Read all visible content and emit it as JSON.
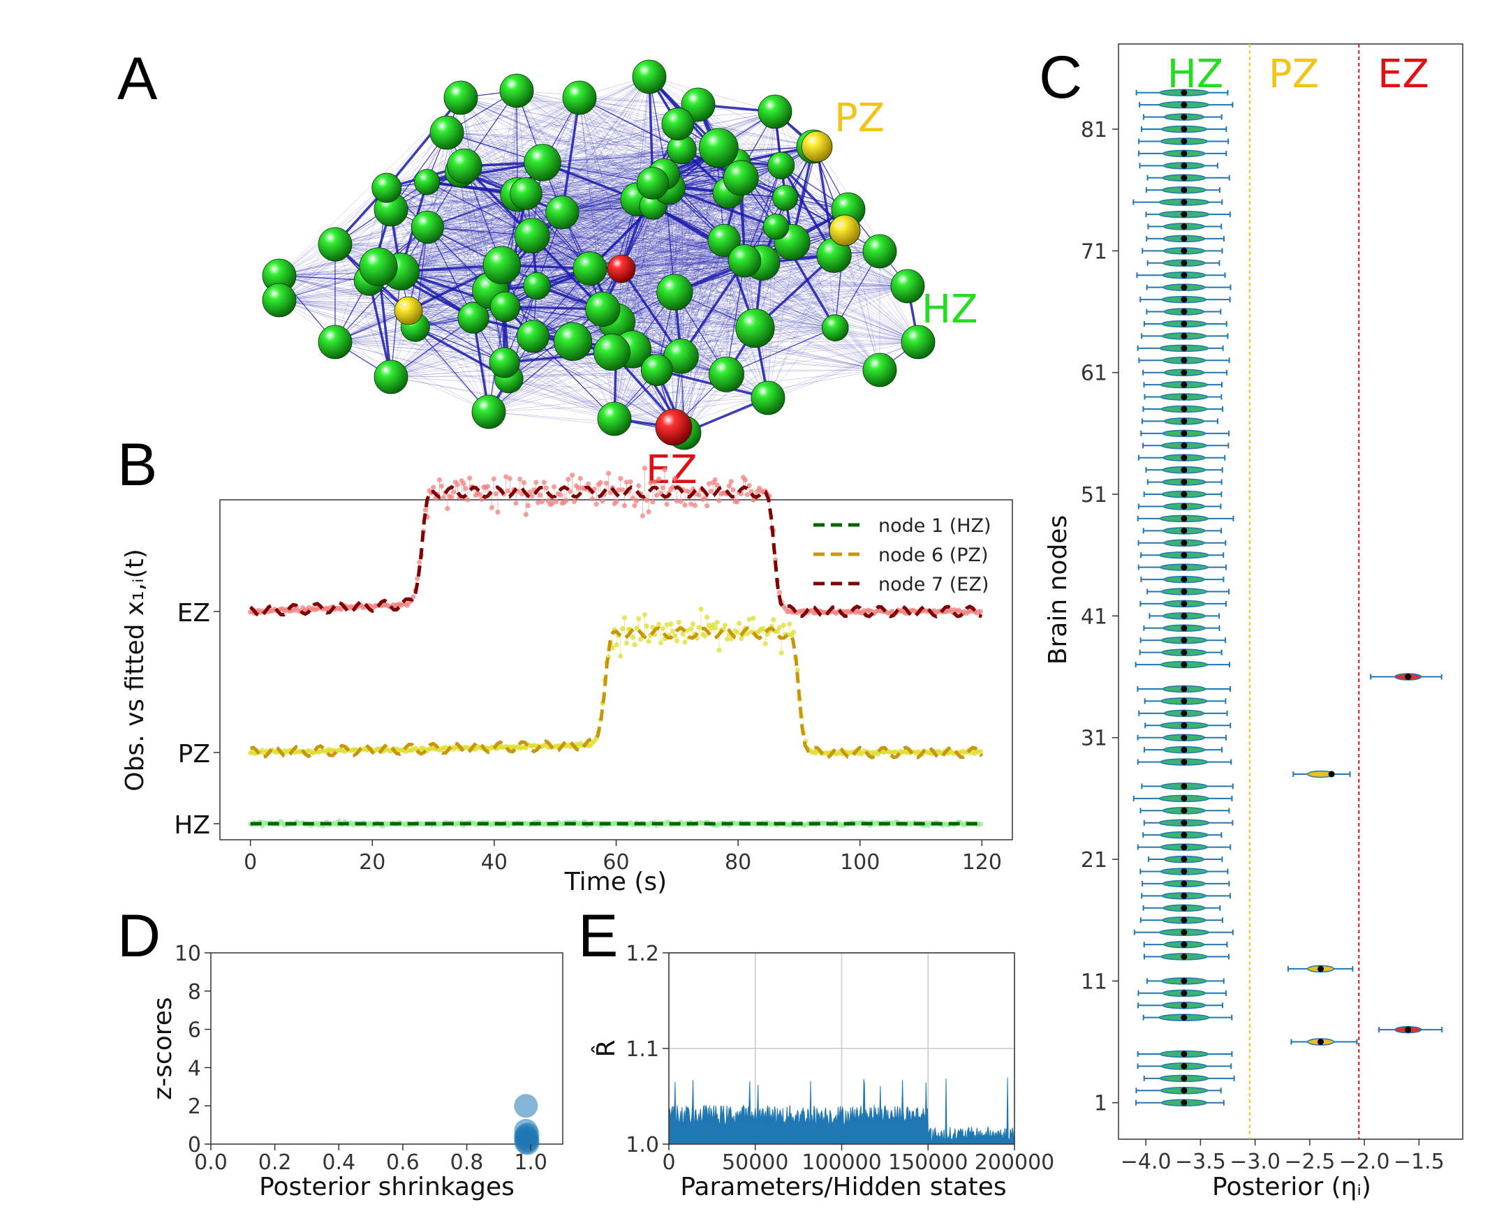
{
  "colors": {
    "hz": "#22dd22",
    "pz": "#f0c419",
    "ez": "#dd1111",
    "edge": "#1a1aaa",
    "violin_blue": "#1f77b4",
    "violin_green": "#3cb371"
  },
  "panel_labels": {
    "a": "A",
    "b": "B",
    "c": "C",
    "d": "D",
    "e": "E"
  },
  "network": {
    "label_pz": "PZ",
    "label_hz": "HZ",
    "label_ez": "EZ"
  },
  "chart_data": [
    {
      "id": "B",
      "type": "line",
      "xlabel": "Time (s)",
      "ylabel": "Obs. vs fitted x₁,ᵢ(t)",
      "xlim": [
        -5,
        125
      ],
      "xticks": [
        0,
        20,
        40,
        60,
        80,
        100,
        120
      ],
      "ytick_labels": [
        "EZ",
        "PZ",
        "HZ"
      ],
      "legend_position": "top-right",
      "series": [
        {
          "name": "node 1 (HZ)",
          "color": "#006400",
          "obs_color": "#90ee90",
          "baseline": 0.0,
          "onset": null,
          "offset": null,
          "amplitude": 0
        },
        {
          "name": "node 6 (PZ)",
          "color": "#c8960a",
          "obs_color": "#dddd30",
          "baseline": 1.0,
          "onset": 58,
          "offset": 90,
          "amplitude": 0.95
        },
        {
          "name": "node 7 (EZ)",
          "color": "#800000",
          "obs_color": "#f08080",
          "baseline": 2.0,
          "onset": 28,
          "offset": 86,
          "amplitude": 0.95
        }
      ]
    },
    {
      "id": "C",
      "type": "scatter",
      "xlabel": "Posterior (ηᵢ)",
      "ylabel": "Brain nodes",
      "xlim": [
        -4.25,
        -1.1
      ],
      "ylim": [
        -2,
        88
      ],
      "xticks": [
        -4.0,
        -3.5,
        -3.0,
        -2.5,
        -2.0,
        -1.5
      ],
      "xtick_labels": [
        "−4.0",
        "−3.5",
        "−3.0",
        "−2.5",
        "−2.0",
        "−1.5"
      ],
      "yticks": [
        1,
        11,
        21,
        31,
        41,
        51,
        61,
        71,
        81
      ],
      "thresholds": [
        {
          "x": -3.05,
          "color": "#f0c419"
        },
        {
          "x": -2.05,
          "color": "#dd1111"
        }
      ],
      "zone_labels": [
        "HZ",
        "PZ",
        "EZ"
      ],
      "n_nodes": 84,
      "hz_mean": -3.65,
      "special_nodes": [
        {
          "node": 6,
          "mean": -2.4,
          "zone": "PZ"
        },
        {
          "node": 7,
          "mean": -1.6,
          "zone": "EZ"
        },
        {
          "node": 12,
          "mean": -2.4,
          "zone": "PZ"
        },
        {
          "node": 28,
          "mean": -2.4,
          "zone": "PZ"
        },
        {
          "node": 36,
          "mean": -1.6,
          "zone": "EZ"
        }
      ]
    },
    {
      "id": "D",
      "type": "scatter",
      "xlabel": "Posterior shrinkages",
      "ylabel": "z-scores",
      "xlim": [
        0,
        1.1
      ],
      "ylim": [
        0,
        10
      ],
      "xticks": [
        0.0,
        0.2,
        0.4,
        0.6,
        0.8,
        1.0
      ],
      "xtick_labels": [
        "0.0",
        "0.2",
        "0.4",
        "0.6",
        "0.8",
        "1.0"
      ],
      "yticks": [
        0,
        2,
        4,
        6,
        8,
        10
      ],
      "points": [
        {
          "x": 0.985,
          "y": 2.0
        },
        {
          "x": 0.985,
          "y": 0.7
        },
        {
          "x": 0.99,
          "y": 0.5
        },
        {
          "x": 0.985,
          "y": 0.3
        },
        {
          "x": 0.99,
          "y": 0.2
        },
        {
          "x": 0.985,
          "y": 0.1
        },
        {
          "x": 0.99,
          "y": 0.05
        },
        {
          "x": 0.985,
          "y": 0.4
        }
      ]
    },
    {
      "id": "E",
      "type": "bar",
      "xlabel": "Parameters/Hidden states",
      "ylabel": "R̂",
      "xlim": [
        0,
        200000
      ],
      "ylim": [
        1.0,
        1.2
      ],
      "xticks": [
        0,
        50000,
        100000,
        150000,
        200000
      ],
      "yticks": [
        1.0,
        1.1,
        1.2
      ],
      "ytick_labels": [
        "1.0",
        "1.1",
        "1.2"
      ],
      "grid": true,
      "typical_value_before_150000": 1.03,
      "typical_value_after_150000": 1.01,
      "max_value": 1.07
    }
  ]
}
